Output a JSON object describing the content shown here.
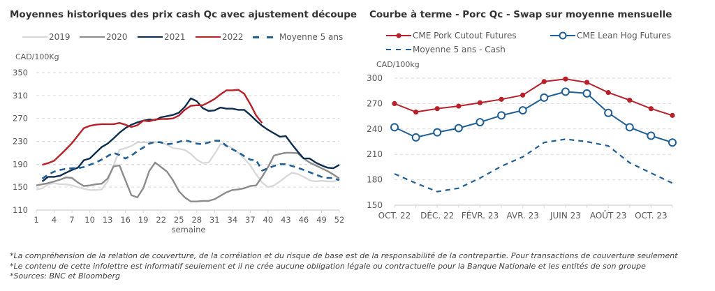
{
  "charts_meta": {
    "left": {
      "title": "Moyennes historiques des prix cash Qc avec ajustement découpe",
      "unit": "CAD/100Kg"
    },
    "right": {
      "title": "Courbe à terme - Porc Qc - Swap sur moyenne mensuelle",
      "unit": "CAD/100kg"
    }
  },
  "colors": {
    "y2019": "#d9d9d9",
    "y2020": "#8c8c8c",
    "y2021": "#0d2d4f",
    "y2022": "#b8202a",
    "avg5": "#1f5f96",
    "pork": "#b8202a",
    "hog": "#1f5f96",
    "grid": "#d9d9d9",
    "axis": "#d9d9d9",
    "tick_text": "#595959"
  },
  "chart_data": [
    {
      "type": "line",
      "title": "Moyennes historiques des prix cash Qc avec ajustement découpe",
      "xlabel": "semaine",
      "ylabel": "CAD/100Kg",
      "ylim": [
        110,
        350
      ],
      "xlim": [
        1,
        52
      ],
      "yticks": [
        110,
        150,
        190,
        230,
        270,
        310,
        350
      ],
      "xticks": [
        1,
        4,
        7,
        10,
        13,
        16,
        19,
        22,
        25,
        28,
        31,
        34,
        37,
        40,
        43,
        46,
        49,
        52
      ],
      "grid": true,
      "legend_position": "top",
      "series": [
        {
          "name": "2019",
          "color_key": "y2019",
          "dash": false,
          "start_week": 1,
          "values": [
            146,
            148,
            155,
            157,
            155,
            155,
            153,
            150,
            147,
            145,
            145,
            146,
            160,
            188,
            215,
            218,
            222,
            228,
            228,
            228,
            228,
            228,
            224,
            218,
            217,
            215,
            208,
            198,
            192,
            193,
            208,
            225,
            223,
            218,
            210,
            200,
            188,
            172,
            158,
            150,
            153,
            160,
            168,
            175,
            173,
            168,
            162,
            160,
            161,
            160,
            160,
            163
          ]
        },
        {
          "name": "2020",
          "color_key": "y2020",
          "dash": false,
          "start_week": 1,
          "values": [
            153,
            155,
            157,
            160,
            163,
            167,
            166,
            158,
            152,
            153,
            155,
            156,
            165,
            186,
            188,
            162,
            136,
            132,
            148,
            178,
            193,
            185,
            177,
            162,
            143,
            132,
            125,
            125,
            126,
            126,
            129,
            135,
            141,
            145,
            146,
            148,
            152,
            153,
            168,
            185,
            205,
            208,
            210,
            210,
            209,
            200,
            193,
            188,
            183,
            178,
            172,
            165
          ]
        },
        {
          "name": "2021",
          "color_key": "y2021",
          "dash": false,
          "start_week": 2,
          "values": [
            160,
            168,
            168,
            170,
            175,
            180,
            184,
            197,
            200,
            210,
            220,
            226,
            235,
            245,
            253,
            259,
            263,
            266,
            268,
            267,
            272,
            274,
            276,
            280,
            290,
            305,
            300,
            288,
            283,
            284,
            289,
            287,
            287,
            285,
            285,
            276,
            266,
            257,
            250,
            244,
            238,
            239,
            225,
            212,
            200,
            200,
            193,
            188,
            184,
            183,
            189
          ]
        },
        {
          "name": "2022",
          "color_key": "y2022",
          "dash": false,
          "start_week": 2,
          "values": [
            189,
            192,
            196,
            206,
            216,
            227,
            240,
            253,
            257,
            259,
            260,
            260,
            260,
            262,
            259,
            255,
            258,
            266,
            265,
            268,
            269,
            269,
            270,
            275,
            285,
            292,
            293,
            293,
            298,
            304,
            312,
            319,
            319,
            320,
            313,
            295,
            275,
            262
          ]
        },
        {
          "name": "Moyenne 5 ans",
          "color_key": "avg5",
          "dash": true,
          "start_week": 2,
          "values": [
            165,
            172,
            177,
            180,
            182,
            183,
            183,
            185,
            189,
            193,
            198,
            204,
            210,
            206,
            200,
            205,
            213,
            219,
            226,
            229,
            228,
            225,
            226,
            229,
            232,
            229,
            226,
            225,
            228,
            231,
            231,
            222,
            216,
            211,
            204,
            198,
            197,
            179,
            183,
            187,
            190,
            190,
            187,
            184,
            180,
            176,
            172,
            168,
            166,
            166,
            162
          ]
        }
      ]
    },
    {
      "type": "line",
      "title": "Courbe à terme - Porc Qc - Swap sur moyenne mensuelle",
      "xlabel": "",
      "ylabel": "CAD/100kg",
      "ylim": [
        150,
        300
      ],
      "yticks": [
        150,
        180,
        210,
        240,
        270,
        300
      ],
      "categories": [
        "OCT. 22",
        "NOV. 22",
        "DÉC. 22",
        "JANV. 23",
        "FÉVR. 23",
        "MARS 23",
        "AVR. 23",
        "MAI 23",
        "JUIN 23",
        "JUIL. 23",
        "AOÛT 23",
        "SEPT. 23",
        "OCT. 23",
        "NOV. 23"
      ],
      "xtick_labels_shown": [
        "OCT. 22",
        "DÉC. 22",
        "FÉVR. 23",
        "AVR. 23",
        "JUIN 23",
        "AOÛT 23",
        "OCT. 23"
      ],
      "grid": true,
      "legend_position": "top",
      "series": [
        {
          "name": "CME Pork Cutout Futures",
          "color_key": "pork",
          "marker": "filled-circle",
          "values": [
            270,
            260,
            264,
            267,
            271,
            275,
            280,
            296,
            299,
            295,
            283,
            274,
            264,
            256
          ]
        },
        {
          "name": "CME Lean Hog Futures",
          "color_key": "hog",
          "marker": "open-circle",
          "values": [
            242,
            230,
            236,
            241,
            248,
            256,
            262,
            277,
            284,
            282,
            259,
            242,
            232,
            224
          ]
        },
        {
          "name": "Moyenne 5 ans - Cash",
          "color_key": "avg5",
          "dash": true,
          "values": [
            187,
            176,
            166,
            170,
            182,
            196,
            207,
            224,
            228,
            225,
            220,
            200,
            188,
            176
          ]
        }
      ]
    }
  ],
  "footnotes": [
    "*La compréhension de la relation de couverture, de la corrélation et du risque de base est de la responsabilité de la contrepartie. Pour transactions de couverture seulement",
    "*Le contenu de cette infolettre est informatif seulement et il ne crée aucune obligation légale ou contractuelle pour la Banque Nationale et les entités de son groupe",
    "*Sources: BNC et Bloomberg"
  ]
}
